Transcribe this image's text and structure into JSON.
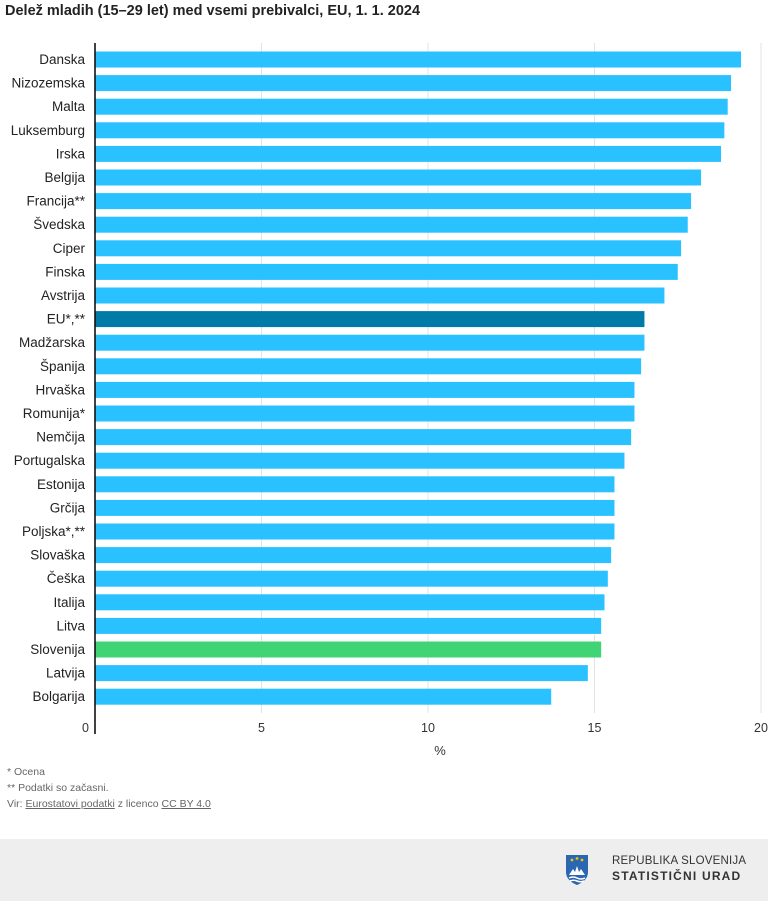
{
  "title": "Delež mladih (15–29 let) med vsemi prebivalci, EU, 1. 1. 2024",
  "chart_data": {
    "type": "bar",
    "orientation": "horizontal",
    "xlabel": "%",
    "xlim": [
      0,
      20
    ],
    "xticks": [
      0,
      5,
      10,
      15,
      20
    ],
    "grid": true,
    "categories": [
      "Danska",
      "Nizozemska",
      "Malta",
      "Luksemburg",
      "Irska",
      "Belgija",
      "Francija**",
      "Švedska",
      "Ciper",
      "Finska",
      "Avstrija",
      "EU*,**",
      "Madžarska",
      "Španija",
      "Hrvaška",
      "Romunija*",
      "Nemčija",
      "Portugalska",
      "Estonija",
      "Grčija",
      "Poljska*,**",
      "Slovaška",
      "Češka",
      "Italija",
      "Litva",
      "Slovenija",
      "Latvija",
      "Bolgarija"
    ],
    "values": [
      19.4,
      19.1,
      19.0,
      18.9,
      18.8,
      18.2,
      17.9,
      17.8,
      17.6,
      17.5,
      17.1,
      16.5,
      16.5,
      16.4,
      16.2,
      16.2,
      16.1,
      15.9,
      15.6,
      15.6,
      15.6,
      15.5,
      15.4,
      15.3,
      15.2,
      15.2,
      14.8,
      13.7
    ],
    "colors": {
      "default": "#29c1ff",
      "eu": "#007aa6",
      "slovenia": "#41d475"
    },
    "highlight": {
      "EU*,**": "eu",
      "Slovenija": "slovenia"
    }
  },
  "notes": {
    "n1": "* Ocena",
    "n2": "** Podatki so začasni.",
    "source_prefix": "Vir: ",
    "source_link": "Eurostatovi podatki",
    "source_mid": " z licenco ",
    "license_link": "CC BY 4.0"
  },
  "footer": {
    "line1": "REPUBLIKA SLOVENIJA",
    "line2": "STATISTIČNI URAD",
    "logo_icon": "slovenia-coat-of-arms-icon"
  }
}
